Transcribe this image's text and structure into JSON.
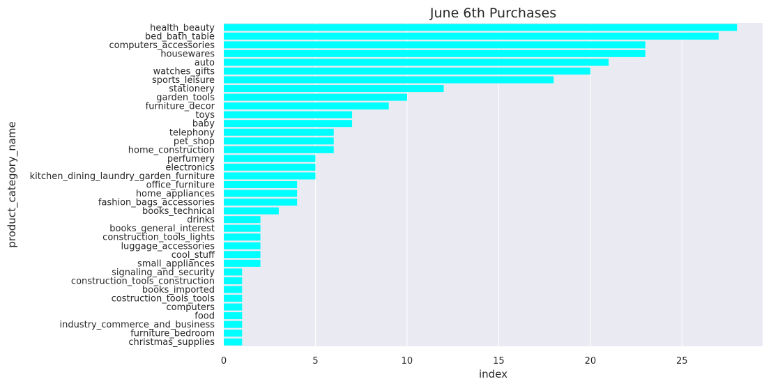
{
  "chart_data": {
    "type": "bar",
    "orientation": "horizontal",
    "title": "June 6th Purchases",
    "xlabel": "index",
    "ylabel": "product_category_name",
    "xlim": [
      0,
      29.4
    ],
    "xticks": [
      0,
      5,
      10,
      15,
      20,
      25
    ],
    "grid": true,
    "bar_color": "#00ffff",
    "background_color": "#eaeaf2",
    "categories": [
      "health_beauty",
      "bed_bath_table",
      "computers_accessories",
      "housewares",
      "auto",
      "watches_gifts",
      "sports_leisure",
      "stationery",
      "garden_tools",
      "furniture_decor",
      "toys",
      "baby",
      "telephony",
      "pet_shop",
      "home_construction",
      "perfumery",
      "electronics",
      "kitchen_dining_laundry_garden_furniture",
      "office_furniture",
      "home_appliances",
      "fashion_bags_accessories",
      "books_technical",
      "drinks",
      "books_general_interest",
      "construction_tools_lights",
      "luggage_accessories",
      "cool_stuff",
      "small_appliances",
      "signaling_and_security",
      "construction_tools_construction",
      "books_imported",
      "costruction_tools_tools",
      "computers",
      "food",
      "industry_commerce_and_business",
      "furniture_bedroom",
      "christmas_supplies"
    ],
    "values": [
      28,
      27,
      23,
      23,
      21,
      20,
      18,
      12,
      10,
      9,
      7,
      7,
      6,
      6,
      6,
      5,
      5,
      5,
      4,
      4,
      4,
      3,
      2,
      2,
      2,
      2,
      2,
      2,
      1,
      1,
      1,
      1,
      1,
      1,
      1,
      1,
      1
    ]
  }
}
